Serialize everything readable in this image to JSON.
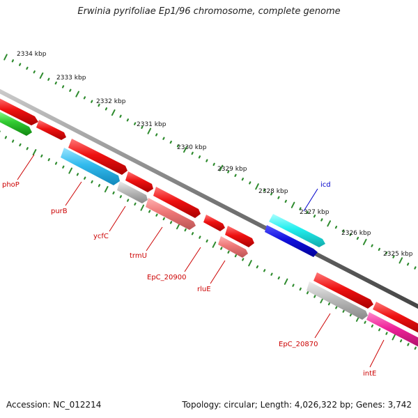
{
  "header": {
    "title": "Erwinia pyrifoliae Ep1/96 chromosome, complete genome"
  },
  "footer": {
    "accession": "Accession: NC_012214",
    "summary": "Topology: circular; Length: 4,026,322 bp; Genes: 3,742"
  },
  "colors": {
    "backbone": "#888888",
    "tick": "#2e8b2e",
    "red_gene": "#ee1111",
    "salmon_gene": "#ee7777",
    "gray_gene": "#bbbbbb",
    "cyan_gene": "#33bbee",
    "aqua_gene": "#22eeee",
    "blue_gene": "#1111dd",
    "magenta_gene": "#ee2299",
    "green_gene": "#33cc33",
    "gene_label": "#cc0000",
    "gene_label_blue": "#0000cc"
  },
  "scale_labels": [
    "2334 kbp",
    "2333 kbp",
    "2332 kbp",
    "2331 kbp",
    "2330 kbp",
    "2329 kbp",
    "2328 kbp",
    "2327 kbp",
    "2326 kbp",
    "2325 kbp"
  ],
  "gene_labels": [
    {
      "name": "phoP",
      "color": "red"
    },
    {
      "name": "purB",
      "color": "red"
    },
    {
      "name": "ycfC",
      "color": "red"
    },
    {
      "name": "trmU",
      "color": "red"
    },
    {
      "name": "EpC_20900",
      "color": "red"
    },
    {
      "name": "rluE",
      "color": "red"
    },
    {
      "name": "EpC_20870",
      "color": "red"
    },
    {
      "name": "intE",
      "color": "red"
    },
    {
      "name": "icd",
      "color": "blue"
    }
  ]
}
